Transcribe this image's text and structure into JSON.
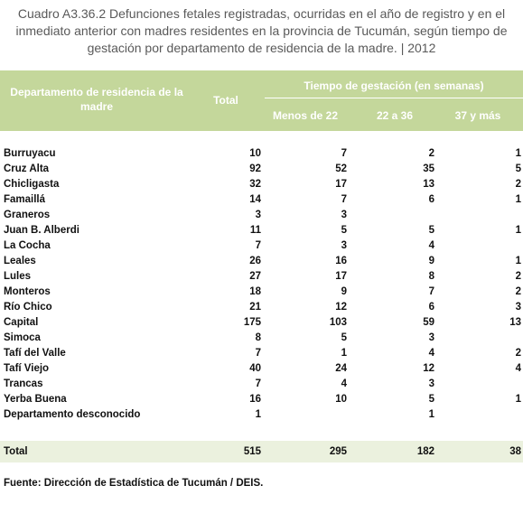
{
  "title": "Cuadro A3.36.2 Defunciones fetales registradas, ocurridas en el año de registro y en el inmediato anterior con madres residentes en la provincia de Tucumán, según tiempo de gestación por departamento de residencia de la madre. | 2012",
  "table": {
    "header": {
      "department": "Departamento de residencia de la madre",
      "total": "Total",
      "group": "Tiempo de gestación (en semanas)",
      "sub": [
        "Menos de 22",
        "22 a 36",
        "37 y más"
      ]
    },
    "rows": [
      [
        "Burruyacu",
        10,
        7,
        2,
        1
      ],
      [
        "Cruz Alta",
        92,
        52,
        35,
        5
      ],
      [
        "Chicligasta",
        32,
        17,
        13,
        2
      ],
      [
        "Famaillá",
        14,
        7,
        6,
        1
      ],
      [
        "Graneros",
        3,
        3,
        null,
        null
      ],
      [
        "Juan B. Alberdi",
        11,
        5,
        5,
        1
      ],
      [
        "La Cocha",
        7,
        3,
        4,
        null
      ],
      [
        "Leales",
        26,
        16,
        9,
        1
      ],
      [
        "Lules",
        27,
        17,
        8,
        2
      ],
      [
        "Monteros",
        18,
        9,
        7,
        2
      ],
      [
        "Río Chico",
        21,
        12,
        6,
        3
      ],
      [
        "Capital",
        175,
        103,
        59,
        13
      ],
      [
        "Simoca",
        8,
        5,
        3,
        null
      ],
      [
        "Tafí del Valle",
        7,
        1,
        4,
        2
      ],
      [
        "Tafí Viejo",
        40,
        24,
        12,
        4
      ],
      [
        "Trancas",
        7,
        4,
        3,
        null
      ],
      [
        "Yerba Buena",
        16,
        10,
        5,
        1
      ],
      [
        "Departamento desconocido",
        1,
        null,
        1,
        null
      ]
    ],
    "total": [
      "Total",
      515,
      295,
      182,
      38
    ]
  },
  "source": "Fuente: Dirección de Estadística de Tucumán / DEIS."
}
